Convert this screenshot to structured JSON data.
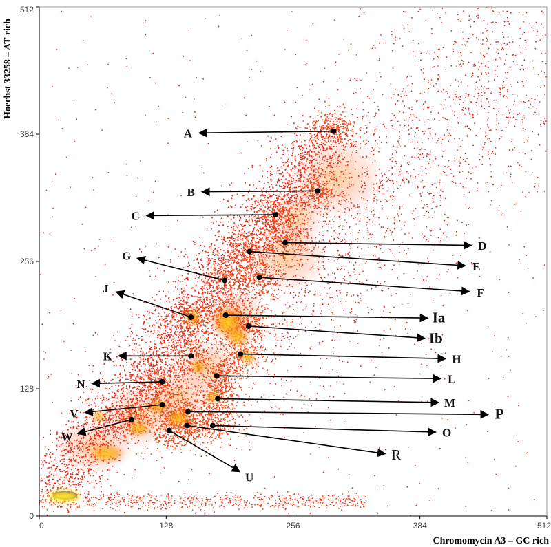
{
  "chart_data": {
    "type": "scatter",
    "xlabel": "Chromomycin A3 – GC rich",
    "ylabel": "Hoechst 33258 – AT rich",
    "xlim": [
      0,
      512
    ],
    "ylim": [
      0,
      512
    ],
    "xticks": [
      0,
      128,
      256,
      384,
      512
    ],
    "yticks": [
      0,
      128,
      256,
      384,
      512
    ],
    "grid": false,
    "colors": {
      "background": "#ffffff",
      "low_density": "#e2261b",
      "mid_density": "#ff8a00",
      "high_density": "#ffe82a",
      "peak_density": "#3a10a0",
      "axis": "#000000",
      "arrow": "#000000"
    },
    "clusters": [
      {
        "label": "A",
        "x": 297,
        "y": 387,
        "label_x": 150,
        "label_y": 385
      },
      {
        "label": "B",
        "x": 281,
        "y": 327,
        "label_x": 153,
        "label_y": 326
      },
      {
        "label": "C",
        "x": 238,
        "y": 303,
        "label_x": 97,
        "label_y": 302
      },
      {
        "label": "D",
        "x": 248,
        "y": 275,
        "label_x": 447,
        "label_y": 272
      },
      {
        "label": "E",
        "x": 212,
        "y": 266,
        "label_x": 441,
        "label_y": 251
      },
      {
        "label": "F",
        "x": 222,
        "y": 240,
        "label_x": 445,
        "label_y": 225
      },
      {
        "label": "G",
        "x": 187,
        "y": 237,
        "label_x": 88,
        "label_y": 262
      },
      {
        "label": "J",
        "x": 153,
        "y": 200,
        "label_x": 67,
        "label_y": 229
      },
      {
        "label": "Ia",
        "x": 188,
        "y": 202,
        "label_x": 403,
        "label_y": 199
      },
      {
        "label": "Ib",
        "x": 211,
        "y": 191,
        "label_x": 400,
        "label_y": 178
      },
      {
        "label": "H",
        "x": 203,
        "y": 163,
        "label_x": 421,
        "label_y": 158
      },
      {
        "label": "K",
        "x": 153,
        "y": 161,
        "label_x": 69,
        "label_y": 161
      },
      {
        "label": "L",
        "x": 179,
        "y": 141,
        "label_x": 416,
        "label_y": 138
      },
      {
        "label": "N",
        "x": 124,
        "y": 135,
        "label_x": 42,
        "label_y": 133
      },
      {
        "label": "M",
        "x": 180,
        "y": 118,
        "label_x": 414,
        "label_y": 114
      },
      {
        "label": "V",
        "x": 124,
        "y": 112,
        "label_x": 35,
        "label_y": 103
      },
      {
        "label": "P",
        "x": 150,
        "y": 105,
        "label_x": 464,
        "label_y": 102
      },
      {
        "label": "W",
        "x": 93,
        "y": 97,
        "label_x": 28,
        "label_y": 80
      },
      {
        "label": "O",
        "x": 175,
        "y": 91,
        "label_x": 411,
        "label_y": 84
      },
      {
        "label": "R",
        "x": 149,
        "y": 91,
        "label_x": 360,
        "label_y": 61
      },
      {
        "label": "U",
        "x": 131,
        "y": 86,
        "label_x": 212,
        "label_y": 39
      }
    ]
  }
}
